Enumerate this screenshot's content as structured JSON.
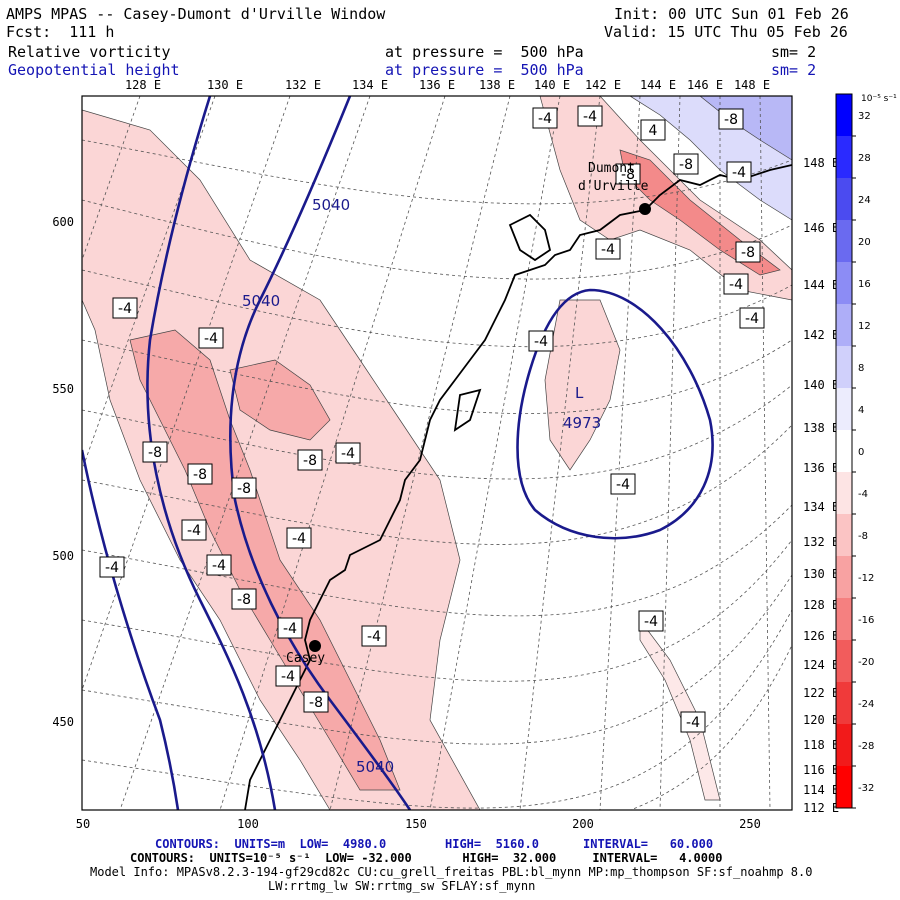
{
  "header": {
    "model": "AMPS MPAS -- Casey-Dumont d'Urville Window",
    "fcst": "Fcst:  111 h",
    "init": "Init: 00 UTC Sun 01 Feb 26",
    "valid": "Valid: 15 UTC Thu 05 Feb 26",
    "field1_name": "Relative vorticity",
    "field1_level": "at pressure =  500 hPa",
    "field1_sm": "sm= 2",
    "field2_name": "Geopotential height",
    "field2_level": "at pressure =  500 hPa",
    "field2_sm": "sm= 2"
  },
  "map": {
    "top_axis_labels": [
      "128 E",
      "130 E",
      "132 E",
      "134 E",
      "136 E",
      "138 E",
      "140 E",
      "142 E",
      "144 E",
      "146 E",
      "148 E"
    ],
    "right_axis_labels": [
      "148 E",
      "146 E",
      "144 E",
      "142 E",
      "140 E",
      "138 E",
      "136 E",
      "134 E",
      "132 E",
      "130 E",
      "128 E",
      "126 E",
      "124 E",
      "122 E",
      "120 E",
      "118 E",
      "116 E",
      "114 E",
      "112 E"
    ],
    "x_ticks": [
      "50",
      "100",
      "150",
      "200",
      "250"
    ],
    "y_ticks": [
      "600",
      "550",
      "500",
      "450"
    ],
    "stations": [
      "Dumont d'Urville",
      "Casey"
    ],
    "low_label": "L",
    "low_value": "4973",
    "height_labels": [
      "5040",
      "5040",
      "5040"
    ],
    "vort_labels": [
      "-4",
      "-4",
      "4",
      "-8",
      "-4",
      "-8",
      "-8",
      "-8",
      "-4",
      "-4",
      "-4",
      "-4",
      "-4",
      "-4",
      "-8",
      "-8",
      "-8",
      "-4",
      "-8",
      "-4",
      "-4",
      "-4",
      "-8",
      "-4",
      "-4",
      "-4",
      "-8",
      "-4",
      "-4",
      "-4",
      "-4"
    ]
  },
  "colorbar": {
    "unit": "10⁻⁵ s⁻¹",
    "labels": [
      "32",
      "28",
      "24",
      "20",
      "16",
      "12",
      "8",
      "4",
      "0",
      "-4",
      "-8",
      "-12",
      "-16",
      "-20",
      "-24",
      "-28",
      "-32"
    ],
    "colors": [
      "#0000ff",
      "#2a2aff",
      "#4b4bf0",
      "#6a6af0",
      "#8c8cf5",
      "#aeaef8",
      "#d0d0fb",
      "#ececfd",
      "#ffffff",
      "#fde4e4",
      "#fbc4c4",
      "#f8a2a2",
      "#f58080",
      "#f25c5c",
      "#f03a3a",
      "#f21a1a",
      "#ff0000"
    ]
  },
  "footer": {
    "line1_a": "CONTOURS:  UNITS=m  LOW=  4980.0",
    "line1_b": "HIGH=  5160.0",
    "line1_c": "INTERVAL=   60.000",
    "line2": "CONTOURS:  UNITS=10⁻⁵ s⁻¹  LOW= -32.000       HIGH=  32.000     INTERVAL=   4.0000",
    "line3": "Model Info: MPASv8.2.3-194-gf29cd82c CU:cu_grell_freitas PBL:bl_mynn MP:mp_thompson SF:sf_noahmp 8.0",
    "line4": "LW:rrtmg_lw SW:rrtmg_sw SFLAY:sf_mynn"
  }
}
